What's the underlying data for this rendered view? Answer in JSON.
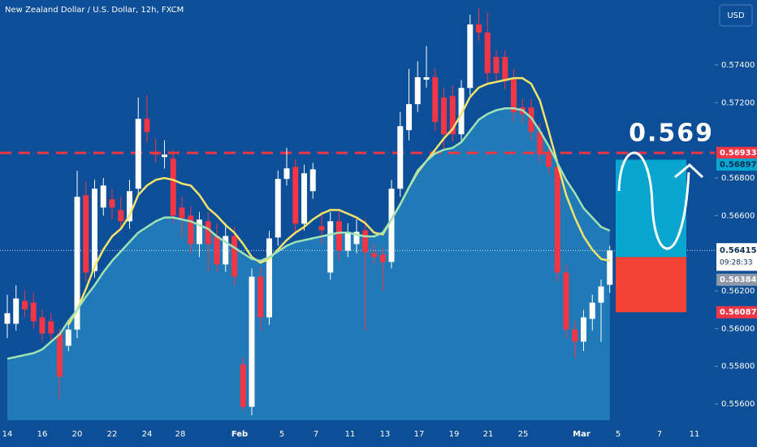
{
  "chart_data": {
    "type": "candlestick",
    "title": "New Zealand Dollar / U.S. Dollar, 12h, FXCM",
    "currency": "USD",
    "annotation": "0.5693",
    "xlabels": [
      "14",
      "16",
      "20",
      "22",
      "24",
      "28",
      "Feb",
      "5",
      "7",
      "11",
      "13",
      "17",
      "19",
      "21",
      "25",
      "Mar",
      "5",
      "7",
      "11"
    ],
    "ylim": [
      0.55514,
      0.57745
    ],
    "yticks": [
      {
        "value": 0.574,
        "label": "0.57400"
      },
      {
        "value": 0.572,
        "label": "0.57200"
      },
      {
        "value": 0.568,
        "label": "0.56800"
      },
      {
        "value": 0.566,
        "label": "0.56600"
      },
      {
        "value": 0.562,
        "label": "0.56200"
      },
      {
        "value": 0.56,
        "label": "0.56000"
      },
      {
        "value": 0.558,
        "label": "0.55800"
      },
      {
        "value": 0.556,
        "label": "0.55600"
      }
    ],
    "up_color": "#ffffff",
    "down_color": "#f23645",
    "open": [
      0.56026,
      0.56026,
      0.56147,
      0.56138,
      0.5606,
      0.56039,
      0.55974,
      0.55909,
      0.55995,
      0.56708,
      0.56306,
      0.56643,
      0.56687,
      0.5663,
      0.5657,
      0.56743,
      0.57114,
      0.56937,
      0.56911,
      0.56903,
      0.56643,
      0.566,
      0.56449,
      0.5657,
      0.56492,
      0.56341,
      0.56492,
      0.5581,
      0.55585,
      0.56276,
      0.5606,
      0.56484,
      0.56795,
      0.56859,
      0.56557,
      0.5673,
      0.56544,
      0.56298,
      0.5657,
      0.56414,
      0.56449,
      0.56522,
      0.56401,
      0.56393,
      0.56354,
      0.56743,
      0.57054,
      0.57192,
      0.57322,
      0.57335,
      0.57227,
      0.57235,
      0.57032,
      0.57278,
      0.57615,
      0.57572,
      0.57443,
      0.57443,
      0.5733,
      0.57175,
      0.57175,
      0.57045,
      0.56924,
      0.56859,
      0.56298,
      0.55995,
      0.55931,
      0.56052,
      0.56138,
      0.56233
    ],
    "high": [
      0.5618,
      0.5623,
      0.562,
      0.5619,
      0.561,
      0.5608,
      0.56,
      0.5604,
      0.56838,
      0.5678,
      0.5679,
      0.568,
      0.5674,
      0.567,
      0.5679,
      0.57227,
      0.5724,
      0.5701,
      0.57,
      0.5695,
      0.567,
      0.5665,
      0.5662,
      0.5662,
      0.5656,
      0.5656,
      0.5654,
      0.5585,
      0.5632,
      0.5633,
      0.5652,
      0.5684,
      0.5696,
      0.569,
      0.5687,
      0.5688,
      0.5662,
      0.5662,
      0.5662,
      0.5656,
      0.5658,
      0.5658,
      0.5645,
      0.5643,
      0.5679,
      0.5715,
      0.5738,
      0.5742,
      0.575,
      0.5738,
      0.5728,
      0.5729,
      0.5732,
      0.57667,
      0.57702,
      0.5768,
      0.5748,
      0.5748,
      0.5738,
      0.5722,
      0.5722,
      0.5709,
      0.5696,
      0.569,
      0.5634,
      0.5604,
      0.561,
      0.5618,
      0.5626,
      0.5644
    ],
    "low": [
      0.5595,
      0.5599,
      0.5606,
      0.56,
      0.5593,
      0.5594,
      0.55628,
      0.5588,
      0.5595,
      0.5625,
      0.5627,
      0.566,
      0.5658,
      0.5652,
      0.5653,
      0.567,
      0.5699,
      0.5688,
      0.5685,
      0.5656,
      0.5648,
      0.564,
      0.5638,
      0.563,
      0.563,
      0.563,
      0.5623,
      0.55563,
      0.5554,
      0.5599,
      0.5602,
      0.5644,
      0.5676,
      0.565,
      0.5652,
      0.5669,
      0.5645,
      0.5626,
      0.5636,
      0.5638,
      0.564,
      0.5599,
      0.5634,
      0.562,
      0.5632,
      0.567,
      0.57,
      0.5715,
      0.5728,
      0.5705,
      0.5695,
      0.5699,
      0.5699,
      0.5724,
      0.5753,
      0.573,
      0.5731,
      0.5727,
      0.571,
      0.5709,
      0.57,
      0.5688,
      0.5682,
      0.5625,
      0.5595,
      0.55844,
      0.5588,
      0.5599,
      0.5593,
      0.5619
    ],
    "close": [
      0.56082,
      0.5616,
      0.56103,
      0.56039,
      0.55974,
      0.55974,
      0.55745,
      0.55995,
      0.567,
      0.56298,
      0.56743,
      0.5676,
      0.56643,
      0.5657,
      0.5673,
      0.57114,
      0.57045,
      0.56924,
      0.56924,
      0.566,
      0.56587,
      0.56449,
      0.56579,
      0.56449,
      0.56341,
      0.56492,
      0.56276,
      0.55585,
      0.56276,
      0.5606,
      0.56479,
      0.56795,
      0.56851,
      0.56557,
      0.56825,
      0.56846,
      0.56522,
      0.5657,
      0.56414,
      0.56514,
      0.56514,
      0.56406,
      0.5638,
      0.56354,
      0.56743,
      0.57075,
      0.57192,
      0.57335,
      0.57335,
      0.57097,
      0.57032,
      0.57032,
      0.57278,
      0.57615,
      0.57572,
      0.57356,
      0.57356,
      0.57313,
      0.57149,
      0.5714,
      0.57045,
      0.56924,
      0.56859,
      0.56298,
      0.55995,
      0.55931,
      0.5606,
      0.56138,
      0.56224,
      0.56415
    ],
    "lines": [
      {
        "color": "#f6e46a",
        "values": [
          null,
          null,
          null,
          null,
          null,
          null,
          null,
          0.5602,
          0.561,
          0.5621,
          0.5633,
          0.5642,
          0.5649,
          0.5653,
          0.566,
          0.5671,
          0.5676,
          0.5679,
          0.568,
          0.5679,
          0.5677,
          0.5676,
          0.5671,
          0.5664,
          0.566,
          0.5655,
          0.5651,
          0.5645,
          0.5638,
          0.5635,
          0.5637,
          0.5642,
          0.5647,
          0.5651,
          0.5654,
          0.5658,
          0.5661,
          0.5663,
          0.5663,
          0.5661,
          0.5659,
          0.5656,
          0.5651,
          0.565,
          0.5658,
          0.5666,
          0.5675,
          0.5683,
          0.5689,
          0.5695,
          0.5701,
          0.5706,
          0.5714,
          0.5723,
          0.5728,
          0.573,
          0.5731,
          0.5732,
          0.5733,
          0.5733,
          0.573,
          0.5721,
          0.5705,
          0.5688,
          0.5671,
          0.5659,
          0.5649,
          0.5642,
          0.5637,
          0.5636
        ]
      },
      {
        "color": "#9fe3b4",
        "area": true,
        "values": [
          0.5584,
          0.5585,
          0.5586,
          0.5587,
          0.5589,
          0.5593,
          0.5597,
          0.5604,
          0.561,
          0.5617,
          0.5623,
          0.563,
          0.5636,
          0.5641,
          0.5646,
          0.5651,
          0.5654,
          0.5657,
          0.5659,
          0.5659,
          0.5658,
          0.5657,
          0.5655,
          0.5653,
          0.5649,
          0.5646,
          0.5643,
          0.564,
          0.5637,
          0.5636,
          0.5638,
          0.5641,
          0.5644,
          0.5646,
          0.5647,
          0.5648,
          0.5649,
          0.565,
          0.5651,
          0.5651,
          0.565,
          0.5649,
          0.5649,
          0.5651,
          0.5658,
          0.5666,
          0.5675,
          0.5684,
          0.5689,
          0.5693,
          0.5695,
          0.5696,
          0.5699,
          0.5705,
          0.5711,
          0.5714,
          0.5716,
          0.5717,
          0.5717,
          0.5716,
          0.5712,
          0.5705,
          0.5697,
          0.5688,
          0.5679,
          0.5672,
          0.5664,
          0.5659,
          0.5654,
          0.5652
        ]
      }
    ],
    "alert_line": {
      "value": 0.56933,
      "color": "#f23645"
    },
    "target": 0.56897,
    "last_price": 0.56415,
    "countdown": "09:28:33",
    "ma_price": 0.56384,
    "stop": 0.56087,
    "entry": 0.5638
  }
}
